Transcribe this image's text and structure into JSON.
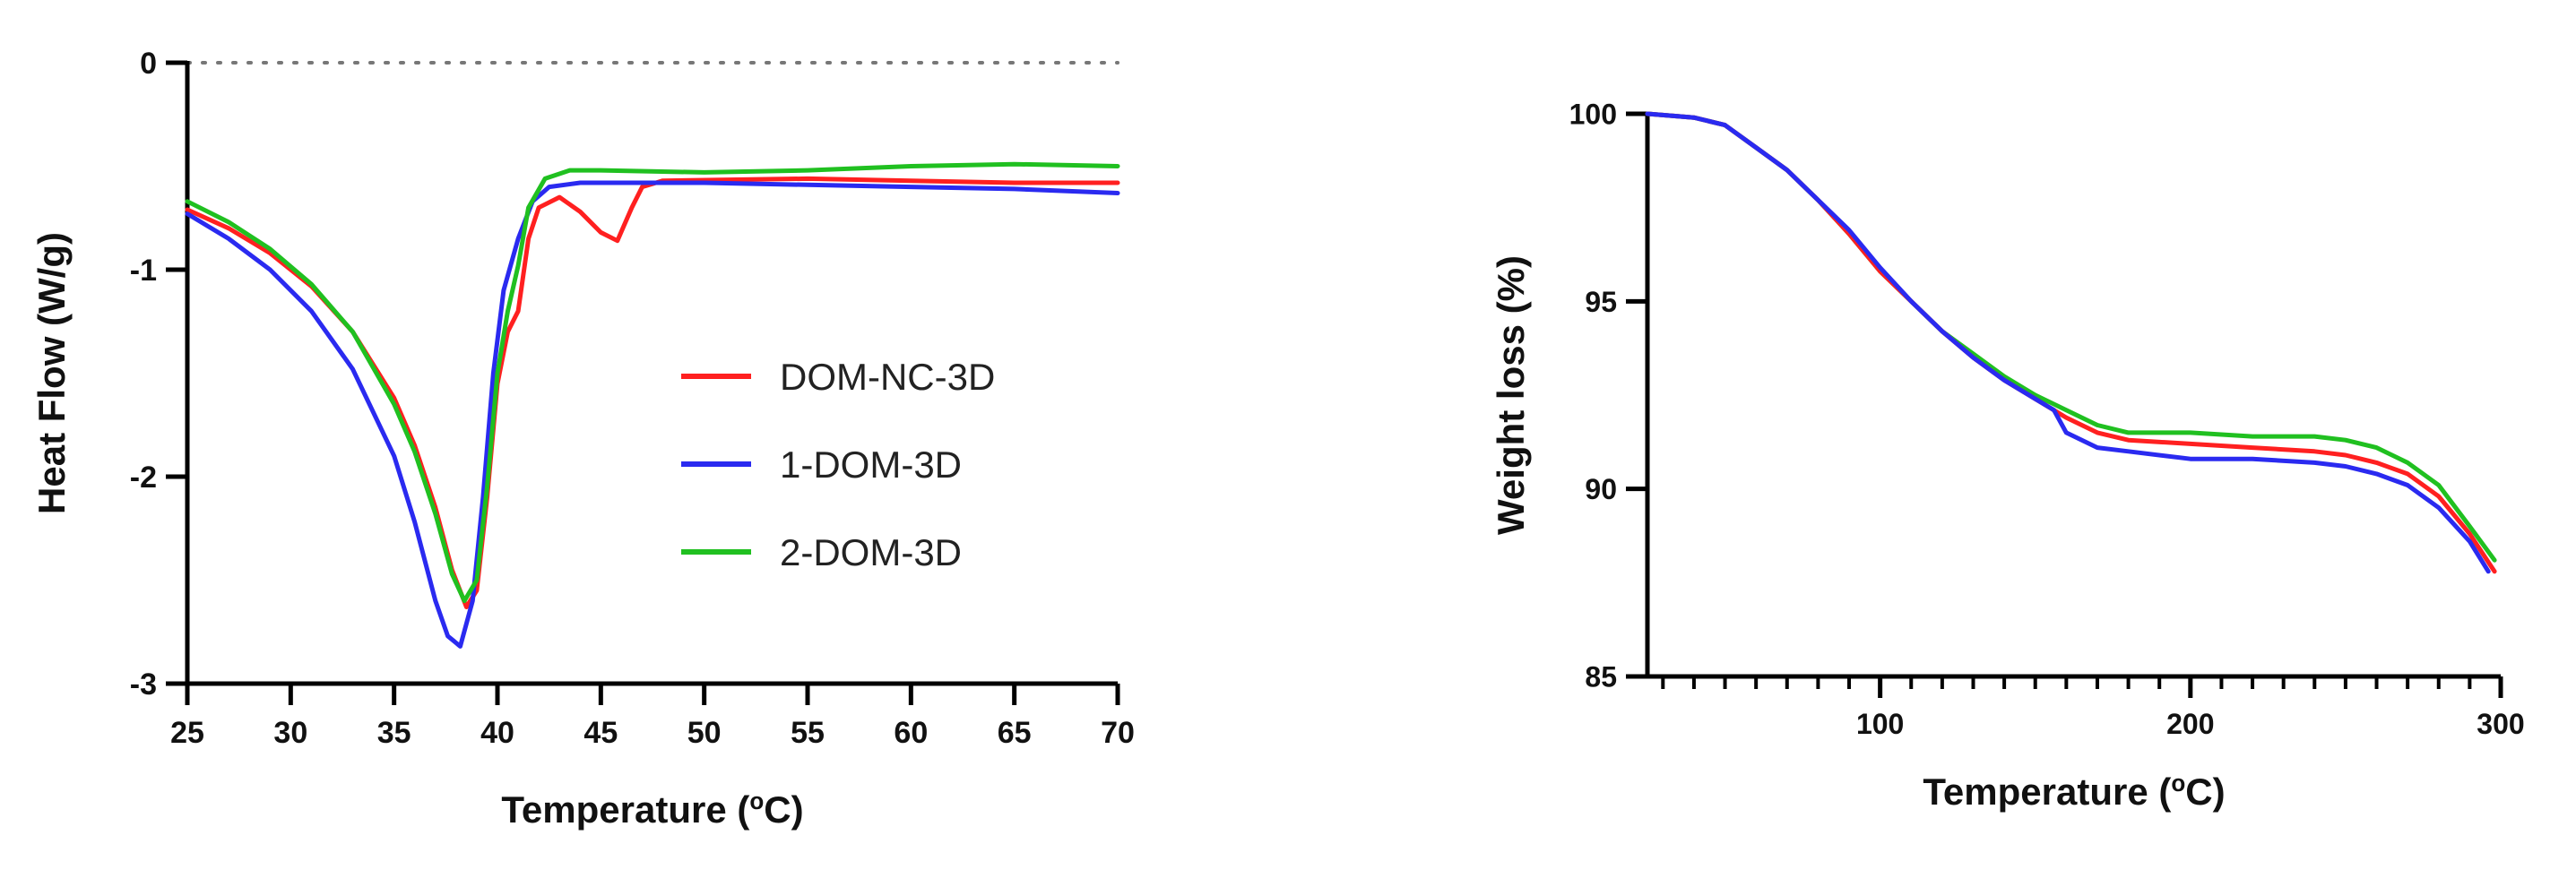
{
  "chart_data": [
    {
      "type": "line",
      "id": "dsc",
      "xlabel": "Temperature (",
      "xlabel_sup": "o",
      "xlabel_suffix": "C)",
      "ylabel": "Heat Flow (W/g)",
      "xlim": [
        25,
        70
      ],
      "ylim": [
        -3,
        0
      ],
      "xticks": [
        25,
        30,
        35,
        40,
        45,
        50,
        55,
        60,
        65,
        70
      ],
      "yticks": [
        0,
        -1,
        -2,
        -3
      ],
      "reference_line": {
        "y": 0,
        "style": "dotted"
      },
      "legend_position": "center-right",
      "series": [
        {
          "name": "DOM-NC-3D",
          "color": "#ff2020",
          "points": [
            [
              25,
              -0.71
            ],
            [
              27,
              -0.8
            ],
            [
              29,
              -0.92
            ],
            [
              31,
              -1.08
            ],
            [
              33,
              -1.3
            ],
            [
              35,
              -1.62
            ],
            [
              36,
              -1.85
            ],
            [
              37,
              -2.15
            ],
            [
              37.8,
              -2.45
            ],
            [
              38.5,
              -2.63
            ],
            [
              39,
              -2.55
            ],
            [
              39.5,
              -2.1
            ],
            [
              40,
              -1.55
            ],
            [
              40.5,
              -1.3
            ],
            [
              41,
              -1.2
            ],
            [
              41.5,
              -0.85
            ],
            [
              42,
              -0.7
            ],
            [
              43,
              -0.65
            ],
            [
              44,
              -0.72
            ],
            [
              45,
              -0.82
            ],
            [
              45.8,
              -0.86
            ],
            [
              46.5,
              -0.7
            ],
            [
              47,
              -0.6
            ],
            [
              48,
              -0.57
            ],
            [
              55,
              -0.56
            ],
            [
              60,
              -0.57
            ],
            [
              65,
              -0.58
            ],
            [
              70,
              -0.58
            ]
          ]
        },
        {
          "name": "1-DOM-3D",
          "color": "#2a2af0",
          "points": [
            [
              25,
              -0.73
            ],
            [
              27,
              -0.85
            ],
            [
              29,
              -1.0
            ],
            [
              31,
              -1.2
            ],
            [
              33,
              -1.48
            ],
            [
              35,
              -1.9
            ],
            [
              36,
              -2.22
            ],
            [
              37,
              -2.6
            ],
            [
              37.6,
              -2.77
            ],
            [
              38.2,
              -2.82
            ],
            [
              38.8,
              -2.6
            ],
            [
              39.3,
              -2.1
            ],
            [
              39.8,
              -1.5
            ],
            [
              40.3,
              -1.1
            ],
            [
              41,
              -0.85
            ],
            [
              41.7,
              -0.67
            ],
            [
              42.5,
              -0.6
            ],
            [
              44,
              -0.58
            ],
            [
              50,
              -0.58
            ],
            [
              55,
              -0.59
            ],
            [
              60,
              -0.6
            ],
            [
              65,
              -0.61
            ],
            [
              70,
              -0.63
            ]
          ]
        },
        {
          "name": "2-DOM-3D",
          "color": "#20c020",
          "points": [
            [
              25,
              -0.67
            ],
            [
              27,
              -0.77
            ],
            [
              29,
              -0.9
            ],
            [
              31,
              -1.07
            ],
            [
              33,
              -1.3
            ],
            [
              35,
              -1.65
            ],
            [
              36,
              -1.88
            ],
            [
              37,
              -2.18
            ],
            [
              37.8,
              -2.47
            ],
            [
              38.4,
              -2.6
            ],
            [
              39,
              -2.5
            ],
            [
              39.5,
              -2.05
            ],
            [
              40,
              -1.5
            ],
            [
              40.5,
              -1.2
            ],
            [
              41,
              -0.98
            ],
            [
              41.5,
              -0.7
            ],
            [
              42.3,
              -0.56
            ],
            [
              43.5,
              -0.52
            ],
            [
              45,
              -0.52
            ],
            [
              50,
              -0.53
            ],
            [
              55,
              -0.52
            ],
            [
              60,
              -0.5
            ],
            [
              65,
              -0.49
            ],
            [
              70,
              -0.5
            ]
          ]
        }
      ]
    },
    {
      "type": "line",
      "id": "tga",
      "xlabel": "Temperature (",
      "xlabel_sup": "o",
      "xlabel_suffix": "C)",
      "ylabel": "Weight loss (%)",
      "xlim": [
        25,
        300
      ],
      "ylim": [
        85,
        100
      ],
      "xticks": [
        100,
        200,
        300
      ],
      "xminor_step": 10,
      "yticks": [
        100,
        95,
        90,
        85
      ],
      "series": [
        {
          "name": "green",
          "color": "#20c020",
          "points": [
            [
              25,
              100
            ],
            [
              40,
              99.9
            ],
            [
              50,
              99.7
            ],
            [
              60,
              99.1
            ],
            [
              70,
              98.5
            ],
            [
              80,
              97.7
            ],
            [
              90,
              96.8
            ],
            [
              100,
              95.8
            ],
            [
              110,
              95.0
            ],
            [
              120,
              94.2
            ],
            [
              130,
              93.6
            ],
            [
              140,
              93.0
            ],
            [
              150,
              92.5
            ],
            [
              160,
              92.1
            ],
            [
              170,
              91.7
            ],
            [
              180,
              91.5
            ],
            [
              200,
              91.5
            ],
            [
              220,
              91.4
            ],
            [
              240,
              91.4
            ],
            [
              250,
              91.3
            ],
            [
              260,
              91.1
            ],
            [
              270,
              90.7
            ],
            [
              280,
              90.1
            ],
            [
              290,
              89.0
            ],
            [
              298,
              88.1
            ]
          ]
        },
        {
          "name": "red",
          "color": "#ff2020",
          "points": [
            [
              25,
              100
            ],
            [
              40,
              99.9
            ],
            [
              50,
              99.7
            ],
            [
              60,
              99.1
            ],
            [
              70,
              98.5
            ],
            [
              80,
              97.7
            ],
            [
              90,
              96.8
            ],
            [
              100,
              95.8
            ],
            [
              110,
              95.0
            ],
            [
              120,
              94.2
            ],
            [
              130,
              93.5
            ],
            [
              140,
              92.9
            ],
            [
              150,
              92.4
            ],
            [
              160,
              91.9
            ],
            [
              170,
              91.5
            ],
            [
              180,
              91.3
            ],
            [
              200,
              91.2
            ],
            [
              220,
              91.1
            ],
            [
              240,
              91.0
            ],
            [
              250,
              90.9
            ],
            [
              260,
              90.7
            ],
            [
              270,
              90.4
            ],
            [
              280,
              89.8
            ],
            [
              290,
              88.8
            ],
            [
              298,
              87.8
            ]
          ]
        },
        {
          "name": "blue",
          "color": "#2a2af0",
          "points": [
            [
              25,
              100
            ],
            [
              40,
              99.9
            ],
            [
              50,
              99.7
            ],
            [
              60,
              99.1
            ],
            [
              70,
              98.5
            ],
            [
              80,
              97.7
            ],
            [
              90,
              96.9
            ],
            [
              100,
              95.9
            ],
            [
              110,
              95.0
            ],
            [
              120,
              94.2
            ],
            [
              130,
              93.5
            ],
            [
              140,
              92.9
            ],
            [
              150,
              92.4
            ],
            [
              156,
              92.1
            ],
            [
              160,
              91.5
            ],
            [
              170,
              91.1
            ],
            [
              180,
              91.0
            ],
            [
              200,
              90.8
            ],
            [
              220,
              90.8
            ],
            [
              240,
              90.7
            ],
            [
              250,
              90.6
            ],
            [
              260,
              90.4
            ],
            [
              270,
              90.1
            ],
            [
              280,
              89.5
            ],
            [
              290,
              88.6
            ],
            [
              296,
              87.8
            ]
          ]
        }
      ]
    }
  ]
}
